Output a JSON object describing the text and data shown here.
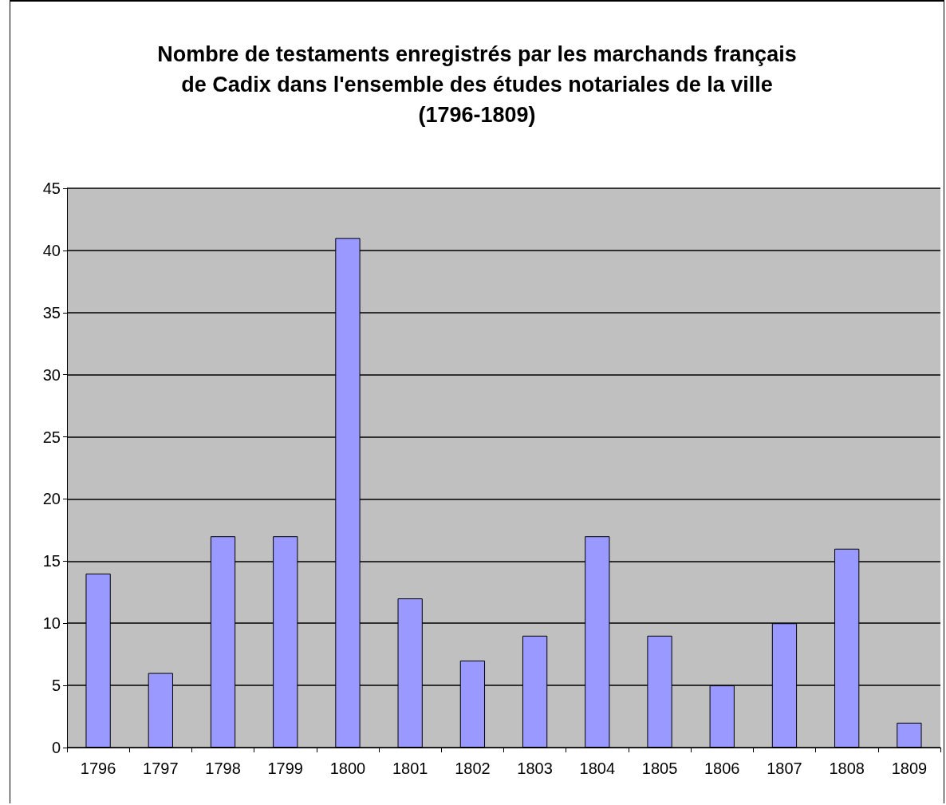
{
  "chart_data": {
    "type": "bar",
    "title": "Nombre de testaments enregistrés par les marchands français\nde Cadix dans l'ensemble des études notariales de la ville\n(1796-1809)",
    "categories": [
      "1796",
      "1797",
      "1798",
      "1799",
      "1800",
      "1801",
      "1802",
      "1803",
      "1804",
      "1805",
      "1806",
      "1807",
      "1808",
      "1809"
    ],
    "values": [
      14,
      6,
      17,
      17,
      41,
      12,
      7,
      9,
      17,
      9,
      5,
      10,
      16,
      2
    ],
    "color": "#9999ff",
    "ylim": [
      0,
      45
    ],
    "yticks": [
      0,
      5,
      10,
      15,
      20,
      25,
      30,
      35,
      40,
      45
    ],
    "grid": "y"
  }
}
